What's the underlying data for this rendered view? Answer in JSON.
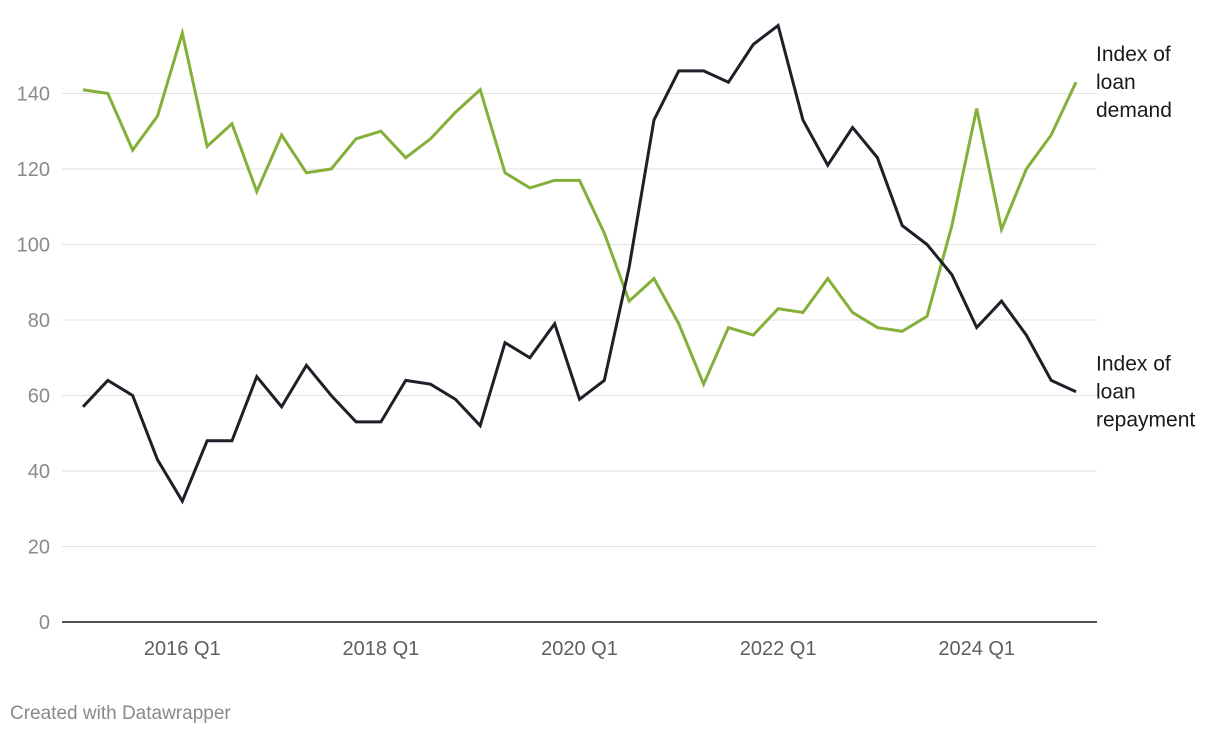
{
  "chart_data": {
    "type": "line",
    "x": [
      "2015 Q1",
      "2015 Q2",
      "2015 Q3",
      "2015 Q4",
      "2016 Q1",
      "2016 Q2",
      "2016 Q3",
      "2016 Q4",
      "2017 Q1",
      "2017 Q2",
      "2017 Q3",
      "2017 Q4",
      "2018 Q1",
      "2018 Q2",
      "2018 Q3",
      "2018 Q4",
      "2019 Q1",
      "2019 Q2",
      "2019 Q3",
      "2019 Q4",
      "2020 Q1",
      "2020 Q2",
      "2020 Q3",
      "2020 Q4",
      "2021 Q1",
      "2021 Q2",
      "2021 Q3",
      "2021 Q4",
      "2022 Q1",
      "2022 Q2",
      "2022 Q3",
      "2022 Q4",
      "2023 Q1",
      "2023 Q2",
      "2023 Q3",
      "2023 Q4",
      "2024 Q1",
      "2024 Q2",
      "2024 Q3",
      "2024 Q4",
      "2025 Q1"
    ],
    "x_ticks": [
      "2016 Q1",
      "2018 Q1",
      "2020 Q1",
      "2022 Q1",
      "2024 Q1"
    ],
    "y_ticks": [
      0,
      20,
      40,
      60,
      80,
      100,
      120,
      140
    ],
    "ylim": [
      0,
      160
    ],
    "grid": true,
    "series": [
      {
        "name": "Index of loan demand",
        "label_lines": [
          "Index of",
          "loan",
          "demand"
        ],
        "color": "#84b03a",
        "values": [
          141,
          140,
          125,
          134,
          156,
          126,
          132,
          114,
          129,
          119,
          120,
          128,
          130,
          123,
          128,
          135,
          141,
          119,
          115,
          117,
          117,
          103,
          85,
          91,
          79,
          63,
          78,
          76,
          83,
          82,
          91,
          82,
          78,
          77,
          81,
          105,
          136,
          104,
          120,
          129,
          143
        ]
      },
      {
        "name": "Index of loan repayment",
        "label_lines": [
          "Index of",
          "loan",
          "repayment"
        ],
        "color": "#1f1f2a",
        "values": [
          57,
          64,
          60,
          43,
          32,
          48,
          48,
          65,
          57,
          68,
          60,
          53,
          53,
          64,
          63,
          59,
          52,
          74,
          70,
          79,
          59,
          64,
          94,
          133,
          146,
          146,
          143,
          153,
          158,
          133,
          121,
          131,
          123,
          105,
          100,
          92,
          78,
          85,
          76,
          64,
          61
        ]
      }
    ]
  },
  "footer": {
    "credit": "Created with Datawrapper"
  }
}
